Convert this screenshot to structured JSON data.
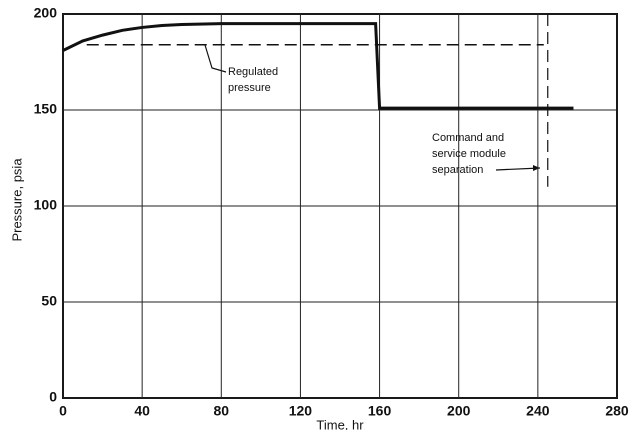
{
  "chart_data": {
    "type": "line",
    "x_label": "Time, hr",
    "y_label": "Pressure, psia",
    "xlim": [
      0,
      280
    ],
    "xticks": [
      0,
      40,
      80,
      120,
      160,
      200,
      240,
      280
    ],
    "ylim": [
      0,
      200
    ],
    "yticks": [
      0,
      50,
      100,
      150,
      200
    ],
    "grid": true,
    "series": [
      {
        "color": "#111111",
        "style": "solid",
        "width": 3,
        "x": [
          0,
          10,
          20,
          30,
          40,
          50,
          60,
          80,
          100,
          120,
          140,
          158,
          160,
          258
        ],
        "values": [
          181,
          186,
          189,
          191.5,
          193,
          194,
          194.5,
          195,
          195,
          195,
          195,
          195,
          151,
          151
        ]
      },
      {
        "color": "#111111",
        "style": "dashed",
        "width": 1.5,
        "x": [
          12,
          243
        ],
        "values": [
          184,
          184
        ]
      },
      {
        "color": "#111111",
        "style": "dashed",
        "width": 1.2,
        "x": [
          245,
          245
        ],
        "values": [
          200,
          110
        ]
      }
    ],
    "annotations": [
      {
        "lines": [
          "Regulated",
          "pressure"
        ]
      },
      {
        "lines": [
          "Command and",
          "service module",
          "separation"
        ]
      }
    ]
  }
}
